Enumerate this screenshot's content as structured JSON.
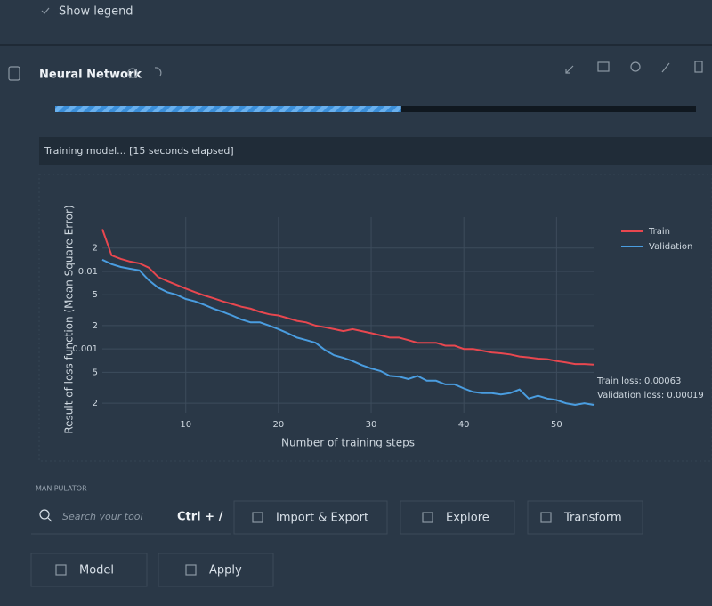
{
  "top": {
    "show_legend": "Show legend"
  },
  "panel": {
    "title": "Neural Network",
    "progress": 54,
    "status": "Training model... [15 seconds elapsed]"
  },
  "chart_data": {
    "type": "line",
    "x_label": "Number of training steps",
    "y_label": "Result of loss function (Mean Square Error)",
    "x": [
      1,
      2,
      3,
      4,
      5,
      6,
      7,
      8,
      9,
      10,
      11,
      12,
      13,
      14,
      15,
      16,
      17,
      18,
      19,
      20,
      21,
      22,
      23,
      24,
      25,
      26,
      27,
      28,
      29,
      30,
      31,
      32,
      33,
      34,
      35,
      36,
      37,
      38,
      39,
      40,
      41,
      42,
      43,
      44,
      45,
      46,
      47,
      48,
      49,
      50,
      51,
      52,
      53,
      54
    ],
    "series": [
      {
        "name": "Train",
        "color": "#e8474f",
        "values": [
          0.035,
          0.0161,
          0.0145,
          0.0134,
          0.0127,
          0.0112,
          0.0085,
          0.0075,
          0.0067,
          0.006,
          0.0054,
          0.0049,
          0.0045,
          0.0041,
          0.0038,
          0.0035,
          0.0033,
          0.003,
          0.0028,
          0.0027,
          0.0025,
          0.0023,
          0.0022,
          0.002,
          0.0019,
          0.0018,
          0.0017,
          0.0018,
          0.0017,
          0.0016,
          0.0015,
          0.0014,
          0.0014,
          0.0013,
          0.0012,
          0.0012,
          0.0012,
          0.0011,
          0.0011,
          0.001,
          0.001,
          0.00095,
          0.0009,
          0.00088,
          0.00085,
          0.0008,
          0.00078,
          0.00075,
          0.00074,
          0.0007,
          0.00067,
          0.00064,
          0.00064,
          0.00063
        ]
      },
      {
        "name": "Validation",
        "color": "#4a9de0",
        "values": [
          0.0141,
          0.0124,
          0.0114,
          0.0108,
          0.0103,
          0.0077,
          0.0062,
          0.0054,
          0.005,
          0.0044,
          0.0041,
          0.0037,
          0.0033,
          0.003,
          0.0027,
          0.0024,
          0.0022,
          0.0022,
          0.002,
          0.0018,
          0.0016,
          0.0014,
          0.0013,
          0.0012,
          0.00097,
          0.00083,
          0.00077,
          0.0007,
          0.00062,
          0.00056,
          0.00052,
          0.00045,
          0.00044,
          0.00041,
          0.00045,
          0.00039,
          0.00039,
          0.00035,
          0.00035,
          0.00031,
          0.00028,
          0.00027,
          0.00027,
          0.00026,
          0.00027,
          0.0003,
          0.00023,
          0.00025,
          0.00023,
          0.00022,
          0.0002,
          0.00019,
          0.0002,
          0.00019
        ]
      }
    ],
    "xlim": [
      1,
      54
    ],
    "xticks": [
      10,
      20,
      30,
      40,
      50
    ],
    "ylim": [
      0.00015,
      0.05
    ],
    "log_y": true,
    "yticks": [
      {
        "value": 0.02,
        "label": "2"
      },
      0.01,
      {
        "value": 0.005,
        "label": "5"
      },
      {
        "value": 0.002,
        "label": "2"
      },
      0.001,
      {
        "value": 0.0005,
        "label": "5"
      },
      {
        "value": 0.0002,
        "label": "2"
      }
    ],
    "grid": true,
    "legend": "top-right",
    "annotations": [
      "Train loss: 0.00063",
      "Validation loss: 0.00019"
    ]
  },
  "manipulator": {
    "label": "MANIPULATOR",
    "search_placeholder": "Search your tool",
    "shortcut": "Ctrl + /",
    "buttons": [
      "Import & Export",
      "Explore",
      "Transform",
      "Model",
      "Apply"
    ]
  }
}
